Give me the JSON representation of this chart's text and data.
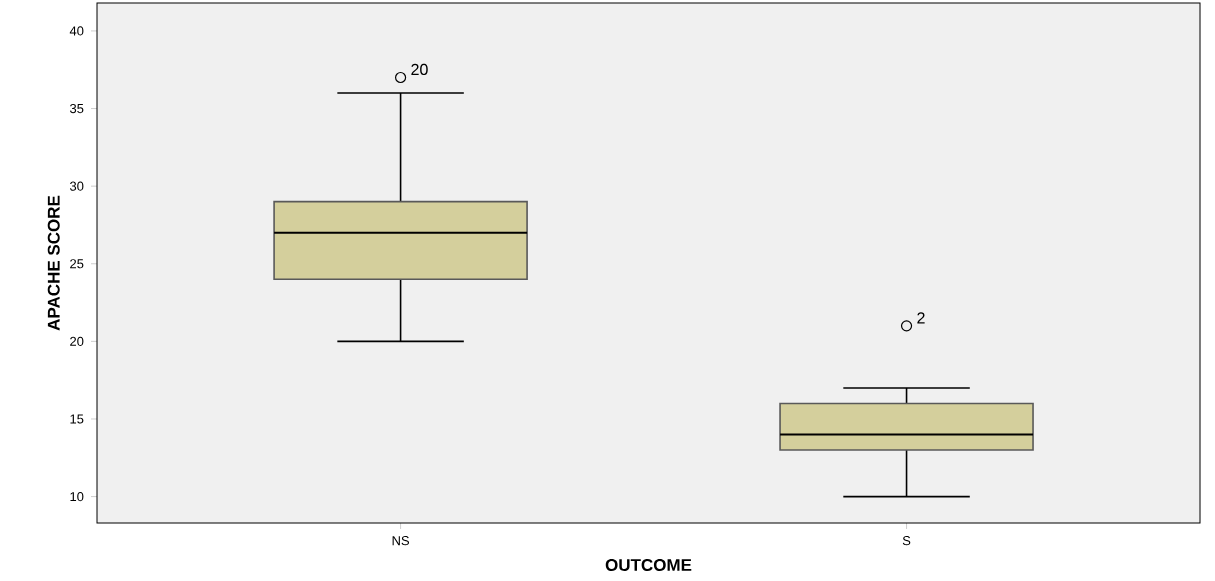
{
  "chart_data": {
    "type": "box",
    "xlabel": "OUTCOME",
    "ylabel": "APACHE SCORE",
    "categories": [
      "NS",
      "S"
    ],
    "boxes": [
      {
        "low": 20,
        "q1": 24,
        "median": 27,
        "q3": 29,
        "high": 36,
        "outliers": [
          37
        ]
      },
      {
        "low": 10,
        "q1": 13,
        "median": 14,
        "q3": 16,
        "high": 17,
        "outliers": [
          21
        ]
      }
    ],
    "color": "#d4cf9c",
    "ylim": [
      8.3,
      41.8
    ],
    "yticks": [
      10,
      15,
      20,
      25,
      30,
      35,
      40
    ],
    "annotations": [
      "20",
      "2"
    ]
  }
}
